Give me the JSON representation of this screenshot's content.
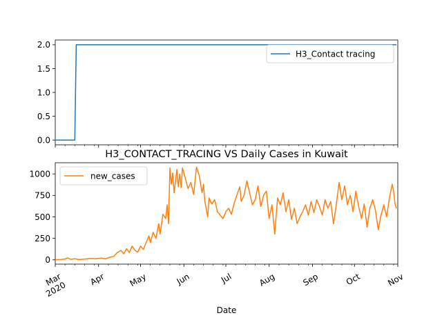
{
  "chart_data": [
    {
      "type": "line",
      "title": "",
      "xlabel": "",
      "ylabel": "",
      "ylim": [
        -0.1,
        2.1
      ],
      "yticks": [
        "0.0",
        "0.5",
        "1.0",
        "1.5",
        "2.0"
      ],
      "x_range": [
        "2020-03-01",
        "2020-10-31"
      ],
      "legend_position": "top-right",
      "series": [
        {
          "name": "H3_Contact tracing",
          "color": "#1f77b4",
          "points": [
            [
              "2020-03-01",
              0
            ],
            [
              "2020-03-15",
              0
            ],
            [
              "2020-03-16",
              2
            ],
            [
              "2020-10-31",
              2
            ]
          ]
        }
      ]
    },
    {
      "type": "line",
      "title": "H3_CONTACT_TRACING VS Daily Cases in Kuwait",
      "xlabel": "Date",
      "ylabel": "",
      "ylim": [
        -50,
        1130
      ],
      "yticks": [
        "0",
        "250",
        "500",
        "750",
        "1000"
      ],
      "x_range": [
        "2020-03-01",
        "2020-10-31"
      ],
      "x_ticks": [
        "Mar\n2020",
        "Apr",
        "May",
        "Jun",
        "Jul",
        "Aug",
        "Sep",
        "Oct",
        "Nov"
      ],
      "legend_position": "top-left",
      "series": [
        {
          "name": "new_cases",
          "color": "#ff7f0e",
          "points": [
            [
              "2020-03-01",
              2
            ],
            [
              "2020-03-05",
              3
            ],
            [
              "2020-03-08",
              10
            ],
            [
              "2020-03-10",
              22
            ],
            [
              "2020-03-12",
              5
            ],
            [
              "2020-03-15",
              12
            ],
            [
              "2020-03-18",
              3
            ],
            [
              "2020-03-22",
              8
            ],
            [
              "2020-03-26",
              15
            ],
            [
              "2020-03-30",
              12
            ],
            [
              "2020-04-03",
              20
            ],
            [
              "2020-04-06",
              10
            ],
            [
              "2020-04-09",
              30
            ],
            [
              "2020-04-12",
              40
            ],
            [
              "2020-04-14",
              80
            ],
            [
              "2020-04-17",
              110
            ],
            [
              "2020-04-19",
              70
            ],
            [
              "2020-04-21",
              130
            ],
            [
              "2020-04-23",
              85
            ],
            [
              "2020-04-25",
              160
            ],
            [
              "2020-04-27",
              110
            ],
            [
              "2020-04-29",
              90
            ],
            [
              "2020-05-01",
              160
            ],
            [
              "2020-05-03",
              120
            ],
            [
              "2020-05-05",
              200
            ],
            [
              "2020-05-07",
              280
            ],
            [
              "2020-05-08",
              200
            ],
            [
              "2020-05-10",
              320
            ],
            [
              "2020-05-12",
              250
            ],
            [
              "2020-05-14",
              420
            ],
            [
              "2020-05-15",
              300
            ],
            [
              "2020-05-17",
              530
            ],
            [
              "2020-05-19",
              480
            ],
            [
              "2020-05-20",
              640
            ],
            [
              "2020-05-21",
              420
            ],
            [
              "2020-05-22",
              1070
            ],
            [
              "2020-05-23",
              880
            ],
            [
              "2020-05-24",
              1010
            ],
            [
              "2020-05-25",
              780
            ],
            [
              "2020-05-27",
              1050
            ],
            [
              "2020-05-28",
              850
            ],
            [
              "2020-05-29",
              1000
            ],
            [
              "2020-05-30",
              840
            ],
            [
              "2020-05-31",
              1070
            ],
            [
              "2020-06-02",
              950
            ],
            [
              "2020-06-04",
              830
            ],
            [
              "2020-06-06",
              900
            ],
            [
              "2020-06-08",
              760
            ],
            [
              "2020-06-10",
              1080
            ],
            [
              "2020-06-12",
              980
            ],
            [
              "2020-06-14",
              780
            ],
            [
              "2020-06-15",
              880
            ],
            [
              "2020-06-16",
              680
            ],
            [
              "2020-06-18",
              500
            ],
            [
              "2020-06-19",
              720
            ],
            [
              "2020-06-21",
              650
            ],
            [
              "2020-06-23",
              700
            ],
            [
              "2020-06-25",
              560
            ],
            [
              "2020-06-27",
              520
            ],
            [
              "2020-06-29",
              480
            ],
            [
              "2020-07-01",
              560
            ],
            [
              "2020-07-03",
              600
            ],
            [
              "2020-07-05",
              530
            ],
            [
              "2020-07-07",
              660
            ],
            [
              "2020-07-09",
              760
            ],
            [
              "2020-07-11",
              850
            ],
            [
              "2020-07-12",
              680
            ],
            [
              "2020-07-14",
              750
            ],
            [
              "2020-07-16",
              920
            ],
            [
              "2020-07-18",
              780
            ],
            [
              "2020-07-20",
              640
            ],
            [
              "2020-07-22",
              700
            ],
            [
              "2020-07-24",
              860
            ],
            [
              "2020-07-26",
              620
            ],
            [
              "2020-07-28",
              750
            ],
            [
              "2020-07-30",
              800
            ],
            [
              "2020-08-01",
              480
            ],
            [
              "2020-08-03",
              640
            ],
            [
              "2020-08-05",
              300
            ],
            [
              "2020-08-07",
              720
            ],
            [
              "2020-08-09",
              640
            ],
            [
              "2020-08-11",
              780
            ],
            [
              "2020-08-13",
              560
            ],
            [
              "2020-08-15",
              700
            ],
            [
              "2020-08-17",
              470
            ],
            [
              "2020-08-19",
              600
            ],
            [
              "2020-08-21",
              420
            ],
            [
              "2020-08-23",
              500
            ],
            [
              "2020-08-25",
              560
            ],
            [
              "2020-08-27",
              640
            ],
            [
              "2020-08-29",
              520
            ],
            [
              "2020-08-31",
              680
            ],
            [
              "2020-09-02",
              550
            ],
            [
              "2020-09-04",
              700
            ],
            [
              "2020-09-06",
              620
            ],
            [
              "2020-09-08",
              520
            ],
            [
              "2020-09-10",
              700
            ],
            [
              "2020-09-12",
              600
            ],
            [
              "2020-09-14",
              680
            ],
            [
              "2020-09-16",
              420
            ],
            [
              "2020-09-18",
              640
            ],
            [
              "2020-09-20",
              900
            ],
            [
              "2020-09-22",
              700
            ],
            [
              "2020-09-24",
              860
            ],
            [
              "2020-09-26",
              640
            ],
            [
              "2020-09-28",
              750
            ],
            [
              "2020-09-30",
              560
            ],
            [
              "2020-10-02",
              800
            ],
            [
              "2020-10-04",
              620
            ],
            [
              "2020-10-06",
              480
            ],
            [
              "2020-10-08",
              650
            ],
            [
              "2020-10-10",
              380
            ],
            [
              "2020-10-12",
              600
            ],
            [
              "2020-10-14",
              700
            ],
            [
              "2020-10-16",
              580
            ],
            [
              "2020-10-18",
              350
            ],
            [
              "2020-10-20",
              520
            ],
            [
              "2020-10-22",
              640
            ],
            [
              "2020-10-24",
              500
            ],
            [
              "2020-10-26",
              720
            ],
            [
              "2020-10-28",
              880
            ],
            [
              "2020-10-29",
              800
            ],
            [
              "2020-10-30",
              650
            ],
            [
              "2020-10-31",
              600
            ]
          ]
        }
      ]
    }
  ]
}
